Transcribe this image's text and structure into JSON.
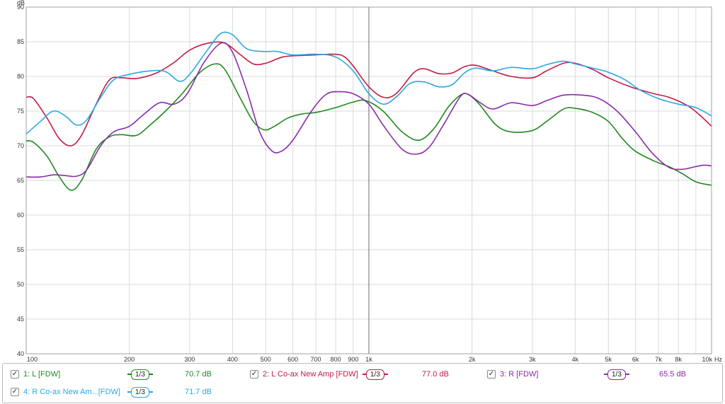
{
  "chart_data": {
    "type": "line",
    "y_unit": "dB",
    "x_unit": "Hz",
    "x_scale": "log",
    "xlim": [
      100,
      10000
    ],
    "ylim": [
      40,
      90
    ],
    "grid": true,
    "x_ticks": [
      {
        "value": 100,
        "label": "100"
      },
      {
        "value": 200,
        "label": "200"
      },
      {
        "value": 300,
        "label": "300"
      },
      {
        "value": 400,
        "label": "400"
      },
      {
        "value": 500,
        "label": "500"
      },
      {
        "value": 600,
        "label": "600"
      },
      {
        "value": 700,
        "label": "700"
      },
      {
        "value": 800,
        "label": "800"
      },
      {
        "value": 900,
        "label": "900"
      },
      {
        "value": 1000,
        "label": "1k"
      },
      {
        "value": 2000,
        "label": "2k"
      },
      {
        "value": 3000,
        "label": "3k"
      },
      {
        "value": 4000,
        "label": "4k"
      },
      {
        "value": 5000,
        "label": "5k"
      },
      {
        "value": 6000,
        "label": "6k"
      },
      {
        "value": 7000,
        "label": "7k"
      },
      {
        "value": 8000,
        "label": "8k"
      },
      {
        "value": 10000,
        "label": "10k"
      }
    ],
    "y_ticks": [
      {
        "value": 40,
        "label": "40"
      },
      {
        "value": 45,
        "label": "45"
      },
      {
        "value": 50,
        "label": "50"
      },
      {
        "value": 55,
        "label": "55"
      },
      {
        "value": 60,
        "label": "60"
      },
      {
        "value": 65,
        "label": "65"
      },
      {
        "value": 70,
        "label": "70"
      },
      {
        "value": 75,
        "label": "75"
      },
      {
        "value": 80,
        "label": "80"
      },
      {
        "value": 85,
        "label": "85"
      },
      {
        "value": 90,
        "label": "90"
      }
    ],
    "cursor_x": 1000,
    "series": [
      {
        "name": "1: L [FDW]",
        "color": "#1e8a1e",
        "smoothing": "1/3",
        "value_label": "70.7 dB",
        "points": [
          [
            100,
            70.7
          ],
          [
            105,
            70.5
          ],
          [
            115,
            68.5
          ],
          [
            125,
            65.5
          ],
          [
            135,
            63.6
          ],
          [
            145,
            65.0
          ],
          [
            160,
            69.5
          ],
          [
            175,
            71.3
          ],
          [
            190,
            71.6
          ],
          [
            210,
            71.5
          ],
          [
            230,
            73.0
          ],
          [
            255,
            75.0
          ],
          [
            285,
            77.5
          ],
          [
            320,
            80.5
          ],
          [
            355,
            81.8
          ],
          [
            380,
            81.0
          ],
          [
            420,
            77.0
          ],
          [
            460,
            73.5
          ],
          [
            495,
            72.3
          ],
          [
            530,
            72.8
          ],
          [
            580,
            74.0
          ],
          [
            640,
            74.6
          ],
          [
            700,
            74.8
          ],
          [
            800,
            75.5
          ],
          [
            900,
            76.3
          ],
          [
            980,
            76.5
          ],
          [
            1100,
            75.0
          ],
          [
            1250,
            72.0
          ],
          [
            1400,
            70.8
          ],
          [
            1550,
            72.5
          ],
          [
            1700,
            75.5
          ],
          [
            1850,
            77.3
          ],
          [
            1950,
            77.4
          ],
          [
            2100,
            76.0
          ],
          [
            2350,
            73.0
          ],
          [
            2600,
            72.0
          ],
          [
            3000,
            72.2
          ],
          [
            3300,
            73.5
          ],
          [
            3700,
            75.3
          ],
          [
            4000,
            75.4
          ],
          [
            4500,
            74.8
          ],
          [
            5000,
            73.5
          ],
          [
            5500,
            71.0
          ],
          [
            6000,
            69.2
          ],
          [
            6800,
            67.8
          ],
          [
            7500,
            67.0
          ],
          [
            8200,
            66.0
          ],
          [
            9000,
            64.8
          ],
          [
            10000,
            64.3
          ]
        ]
      },
      {
        "name": "2: L Co-ax New Amp [FDW]",
        "color": "#c21b45",
        "smoothing": "1/3",
        "value_label": "77.0 dB",
        "points": [
          [
            100,
            77.0
          ],
          [
            105,
            76.8
          ],
          [
            115,
            74.0
          ],
          [
            125,
            71.0
          ],
          [
            135,
            70.0
          ],
          [
            145,
            71.5
          ],
          [
            160,
            76.0
          ],
          [
            175,
            79.5
          ],
          [
            190,
            79.8
          ],
          [
            210,
            79.7
          ],
          [
            240,
            80.5
          ],
          [
            270,
            82.0
          ],
          [
            300,
            83.8
          ],
          [
            340,
            84.8
          ],
          [
            380,
            84.8
          ],
          [
            420,
            83.2
          ],
          [
            460,
            81.8
          ],
          [
            500,
            81.9
          ],
          [
            560,
            82.8
          ],
          [
            620,
            83.0
          ],
          [
            700,
            83.1
          ],
          [
            800,
            83.2
          ],
          [
            850,
            82.8
          ],
          [
            900,
            81.5
          ],
          [
            1000,
            78.5
          ],
          [
            1100,
            77.0
          ],
          [
            1200,
            77.5
          ],
          [
            1350,
            80.5
          ],
          [
            1450,
            81.1
          ],
          [
            1600,
            80.4
          ],
          [
            1750,
            80.5
          ],
          [
            1900,
            81.4
          ],
          [
            2050,
            81.6
          ],
          [
            2300,
            80.8
          ],
          [
            2600,
            80.0
          ],
          [
            3000,
            79.8
          ],
          [
            3300,
            80.8
          ],
          [
            3700,
            81.9
          ],
          [
            4000,
            81.9
          ],
          [
            4500,
            81.0
          ],
          [
            5000,
            79.8
          ],
          [
            5800,
            78.5
          ],
          [
            6800,
            77.5
          ],
          [
            7500,
            77.0
          ],
          [
            8500,
            75.8
          ],
          [
            9200,
            74.5
          ],
          [
            10000,
            72.8
          ]
        ]
      },
      {
        "name": "3: R [FDW]",
        "color": "#8a2ca8",
        "smoothing": "1/3",
        "value_label": "65.5 dB",
        "points": [
          [
            100,
            65.5
          ],
          [
            110,
            65.5
          ],
          [
            120,
            65.8
          ],
          [
            130,
            65.7
          ],
          [
            140,
            65.6
          ],
          [
            150,
            66.5
          ],
          [
            165,
            70.0
          ],
          [
            180,
            72.0
          ],
          [
            200,
            72.8
          ],
          [
            220,
            74.5
          ],
          [
            245,
            76.2
          ],
          [
            270,
            76.0
          ],
          [
            295,
            77.5
          ],
          [
            330,
            82.0
          ],
          [
            370,
            84.8
          ],
          [
            400,
            83.5
          ],
          [
            440,
            78.0
          ],
          [
            480,
            72.0
          ],
          [
            520,
            69.3
          ],
          [
            555,
            69.2
          ],
          [
            600,
            70.8
          ],
          [
            680,
            75.0
          ],
          [
            750,
            77.4
          ],
          [
            820,
            77.8
          ],
          [
            900,
            77.5
          ],
          [
            1000,
            76.0
          ],
          [
            1100,
            73.0
          ],
          [
            1250,
            69.5
          ],
          [
            1380,
            68.8
          ],
          [
            1500,
            69.8
          ],
          [
            1650,
            73.0
          ],
          [
            1850,
            77.1
          ],
          [
            1950,
            77.4
          ],
          [
            2100,
            76.3
          ],
          [
            2300,
            75.3
          ],
          [
            2600,
            76.2
          ],
          [
            3000,
            75.8
          ],
          [
            3300,
            76.5
          ],
          [
            3700,
            77.3
          ],
          [
            4200,
            77.3
          ],
          [
            4700,
            76.8
          ],
          [
            5300,
            75.0
          ],
          [
            6000,
            72.0
          ],
          [
            6700,
            69.0
          ],
          [
            7500,
            66.9
          ],
          [
            8200,
            66.6
          ],
          [
            9000,
            67.0
          ],
          [
            9500,
            67.2
          ],
          [
            10000,
            67.1
          ]
        ]
      },
      {
        "name": "4: R Co-ax New Am...[FDW]",
        "color": "#2aa7e6",
        "smoothing": "1/3",
        "value_label": "71.7 dB",
        "points": [
          [
            100,
            71.7
          ],
          [
            110,
            73.5
          ],
          [
            120,
            75.0
          ],
          [
            130,
            74.3
          ],
          [
            140,
            73.0
          ],
          [
            150,
            73.7
          ],
          [
            165,
            77.0
          ],
          [
            180,
            79.5
          ],
          [
            200,
            80.3
          ],
          [
            230,
            80.8
          ],
          [
            255,
            80.7
          ],
          [
            280,
            79.3
          ],
          [
            300,
            80.3
          ],
          [
            340,
            84.0
          ],
          [
            370,
            86.2
          ],
          [
            400,
            86.0
          ],
          [
            440,
            84.0
          ],
          [
            490,
            83.6
          ],
          [
            540,
            83.6
          ],
          [
            600,
            83.1
          ],
          [
            700,
            83.2
          ],
          [
            800,
            82.8
          ],
          [
            900,
            80.8
          ],
          [
            1000,
            77.5
          ],
          [
            1100,
            76.0
          ],
          [
            1200,
            77.0
          ],
          [
            1320,
            79.0
          ],
          [
            1450,
            79.2
          ],
          [
            1600,
            78.5
          ],
          [
            1750,
            78.8
          ],
          [
            1900,
            80.5
          ],
          [
            2050,
            81.2
          ],
          [
            2300,
            80.8
          ],
          [
            2600,
            81.3
          ],
          [
            3000,
            81.1
          ],
          [
            3300,
            81.7
          ],
          [
            3700,
            82.2
          ],
          [
            4000,
            81.8
          ],
          [
            4500,
            81.2
          ],
          [
            5000,
            80.6
          ],
          [
            5600,
            79.5
          ],
          [
            6200,
            78.0
          ],
          [
            7000,
            76.8
          ],
          [
            8000,
            76.0
          ],
          [
            9000,
            75.5
          ],
          [
            10000,
            74.3
          ]
        ]
      }
    ]
  }
}
